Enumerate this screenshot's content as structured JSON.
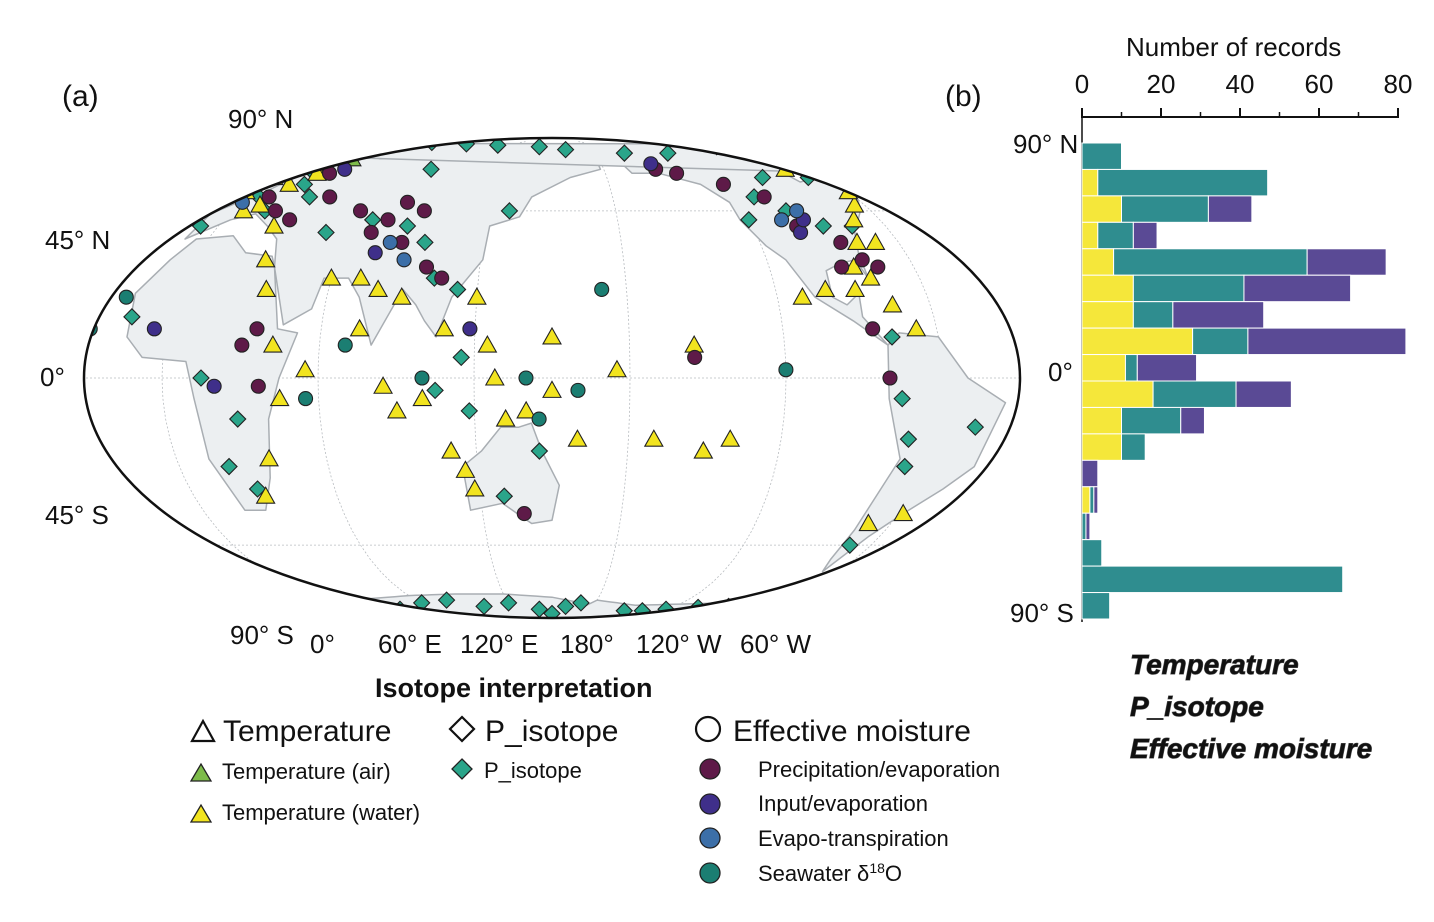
{
  "panels": {
    "a": "(a)",
    "b": "(b)"
  },
  "map": {
    "lat_labels": [
      "90° N",
      "45° N",
      "0°",
      "45° S",
      "90° S"
    ],
    "lon_labels": [
      "0°",
      "60° E",
      "120° E",
      "180°",
      "120° W",
      "60° W"
    ]
  },
  "legend": {
    "title": "Isotope interpretation",
    "groups": [
      {
        "label": "Temperature",
        "marker": "triangle-open",
        "items": [
          {
            "label": "Temperature (air)",
            "marker": "triangle",
            "color": "#7dbb4a"
          },
          {
            "label": "Temperature (water)",
            "marker": "triangle",
            "color": "#f2e41f"
          }
        ]
      },
      {
        "label": "P_isotope",
        "marker": "diamond-open",
        "items": [
          {
            "label": "P_isotope",
            "marker": "diamond",
            "color": "#2aa58a"
          }
        ]
      },
      {
        "label": "Effective moisture",
        "marker": "circle-open",
        "items": [
          {
            "label": "Precipitation/evaporation",
            "marker": "circle",
            "color": "#5e1a48"
          },
          {
            "label": "Input/evaporation",
            "marker": "circle",
            "color": "#3f2f8a"
          },
          {
            "label": "Evapo-transpiration",
            "marker": "circle",
            "color": "#3c6fa8"
          },
          {
            "label": "Seawater δ",
            "sup": "18",
            "suffix": "O",
            "marker": "circle",
            "color": "#1b7e72"
          }
        ]
      }
    ]
  },
  "colors": {
    "temperature": "#f5e73a",
    "p_isotope": "#2f8d8f",
    "effective_moisture": "#5a4a95",
    "land": "#eceff1",
    "coast": "#a9aeb3"
  },
  "chart_data": {
    "type": "bar",
    "orientation": "horizontal-stacked",
    "xlabel": "Number of records",
    "xlim": [
      0,
      80
    ],
    "xticks": [
      0,
      20,
      40,
      60,
      80
    ],
    "ylim": [
      -90,
      90
    ],
    "yticks": [
      "90° N",
      "0°",
      "90° S"
    ],
    "lat_bins": [
      [
        80,
        90
      ],
      [
        70,
        80
      ],
      [
        60,
        70
      ],
      [
        50,
        60
      ],
      [
        40,
        50
      ],
      [
        30,
        40
      ],
      [
        20,
        30
      ],
      [
        10,
        20
      ],
      [
        0,
        10
      ],
      [
        -10,
        0
      ],
      [
        -20,
        -10
      ],
      [
        -30,
        -20
      ],
      [
        -40,
        -30
      ],
      [
        -50,
        -40
      ],
      [
        -60,
        -50
      ],
      [
        -70,
        -60
      ],
      [
        -80,
        -70
      ],
      [
        -90,
        -80
      ]
    ],
    "series": [
      {
        "name": "Temperature",
        "values": [
          0,
          4,
          10,
          4,
          8,
          13,
          13,
          28,
          11,
          18,
          10,
          10,
          0,
          2,
          0,
          0,
          0,
          0
        ]
      },
      {
        "name": "P_isotope",
        "values": [
          10,
          43,
          22,
          9,
          49,
          28,
          10,
          14,
          3,
          21,
          15,
          6,
          0,
          1,
          1,
          5,
          66,
          7
        ]
      },
      {
        "name": "Effective moisture",
        "values": [
          0,
          0,
          11,
          6,
          20,
          27,
          23,
          40,
          15,
          14,
          6,
          0,
          4,
          1,
          1,
          0,
          0,
          0
        ]
      }
    ]
  },
  "map_points": [
    {
      "lon": -5,
      "lat": 52,
      "s": "tw"
    },
    {
      "lon": -2,
      "lat": 58,
      "s": "tw"
    },
    {
      "lon": 8,
      "lat": 64,
      "s": "tw"
    },
    {
      "lon": 14,
      "lat": 70,
      "s": "tw"
    },
    {
      "lon": 22,
      "lat": 68,
      "s": "ta"
    },
    {
      "lon": 18,
      "lat": 60,
      "s": "tw"
    },
    {
      "lon": 10,
      "lat": 47,
      "s": "tw"
    },
    {
      "lon": 25,
      "lat": 40,
      "s": "tw"
    },
    {
      "lon": 30,
      "lat": 30,
      "s": "tw"
    },
    {
      "lon": 35,
      "lat": 22,
      "s": "tw"
    },
    {
      "lon": 42,
      "lat": 8,
      "s": "tw"
    },
    {
      "lon": 45,
      "lat": -5,
      "s": "tw"
    },
    {
      "lon": 37,
      "lat": -20,
      "s": "tw"
    },
    {
      "lon": 30,
      "lat": -30,
      "s": "tw"
    },
    {
      "lon": 55,
      "lat": 2,
      "s": "tw"
    },
    {
      "lon": 75,
      "lat": 12,
      "s": "tw"
    },
    {
      "lon": 72,
      "lat": 25,
      "s": "tw"
    },
    {
      "lon": 85,
      "lat": -2,
      "s": "tw"
    },
    {
      "lon": 90,
      "lat": -8,
      "s": "tw"
    },
    {
      "lon": 110,
      "lat": -18,
      "s": "tw"
    },
    {
      "lon": 118,
      "lat": -28,
      "s": "tw"
    },
    {
      "lon": 115,
      "lat": -23,
      "s": "tw"
    },
    {
      "lon": 140,
      "lat": -8,
      "s": "tw"
    },
    {
      "lon": 150,
      "lat": -3,
      "s": "tw"
    },
    {
      "lon": 160,
      "lat": -15,
      "s": "tw"
    },
    {
      "lon": 175,
      "lat": 2,
      "s": "tw"
    },
    {
      "lon": -170,
      "lat": -15,
      "s": "tw"
    },
    {
      "lon": -150,
      "lat": -18,
      "s": "tw"
    },
    {
      "lon": -140,
      "lat": -15,
      "s": "tw"
    },
    {
      "lon": -155,
      "lat": 8,
      "s": "tw"
    },
    {
      "lon": -110,
      "lat": 20,
      "s": "tw"
    },
    {
      "lon": -100,
      "lat": 22,
      "s": "tw"
    },
    {
      "lon": -85,
      "lat": 28,
      "s": "tw"
    },
    {
      "lon": -80,
      "lat": 25,
      "s": "tw"
    },
    {
      "lon": -75,
      "lat": 18,
      "s": "tw"
    },
    {
      "lon": -68,
      "lat": 12,
      "s": "tw"
    },
    {
      "lon": -78,
      "lat": 35,
      "s": "tw"
    },
    {
      "lon": -72,
      "lat": 42,
      "s": "tw"
    },
    {
      "lon": -65,
      "lat": 47,
      "s": "tw"
    },
    {
      "lon": -60,
      "lat": 52,
      "s": "tw"
    },
    {
      "lon": -75,
      "lat": 62,
      "s": "tw"
    },
    {
      "lon": -70,
      "lat": 35,
      "s": "tw"
    },
    {
      "lon": -88,
      "lat": 22,
      "s": "tw"
    },
    {
      "lon": -70,
      "lat": -38,
      "s": "tw"
    },
    {
      "lon": -58,
      "lat": -35,
      "s": "tw"
    },
    {
      "lon": 120,
      "lat": 20,
      "s": "tw"
    },
    {
      "lon": 125,
      "lat": 8,
      "s": "tw"
    },
    {
      "lon": 128,
      "lat": 0,
      "s": "tw"
    },
    {
      "lon": 132,
      "lat": -10,
      "s": "tw"
    },
    {
      "lon": 100,
      "lat": -5,
      "s": "tw"
    },
    {
      "lon": 150,
      "lat": 10,
      "s": "tw"
    },
    {
      "lon": 108,
      "lat": 12,
      "s": "tw"
    },
    {
      "lon": 90,
      "lat": 20,
      "s": "tw"
    },
    {
      "lon": 80,
      "lat": 22,
      "s": "tw"
    },
    {
      "lon": 60,
      "lat": 25,
      "s": "tw"
    },
    {
      "lon": 12,
      "lat": 55,
      "s": "tw"
    },
    {
      "lon": -12,
      "lat": 64,
      "s": "tw"
    },
    {
      "lon": 5,
      "lat": 45,
      "s": "tw"
    },
    {
      "lon": 35,
      "lat": 85,
      "s": "pi"
    },
    {
      "lon": 75,
      "lat": 82,
      "s": "pi"
    },
    {
      "lon": 105,
      "lat": 80,
      "s": "pi"
    },
    {
      "lon": 140,
      "lat": 78,
      "s": "pi"
    },
    {
      "lon": 160,
      "lat": 75,
      "s": "pi"
    },
    {
      "lon": -160,
      "lat": 72,
      "s": "pi"
    },
    {
      "lon": -130,
      "lat": 72,
      "s": "pi"
    },
    {
      "lon": -80,
      "lat": 78,
      "s": "pi"
    },
    {
      "lon": -60,
      "lat": 78,
      "s": "pi"
    },
    {
      "lon": -50,
      "lat": 75,
      "s": "pi"
    },
    {
      "lon": -45,
      "lat": 70,
      "s": "pi"
    },
    {
      "lon": -40,
      "lat": 68,
      "s": "pi"
    },
    {
      "lon": -35,
      "lat": 65,
      "s": "pi"
    },
    {
      "lon": -30,
      "lat": 62,
      "s": "pi"
    },
    {
      "lon": -25,
      "lat": 70,
      "s": "pi"
    },
    {
      "lon": -55,
      "lat": 65,
      "s": "pi"
    },
    {
      "lon": -70,
      "lat": 58,
      "s": "pi"
    },
    {
      "lon": -95,
      "lat": 58,
      "s": "pi"
    },
    {
      "lon": -110,
      "lat": 50,
      "s": "pi"
    },
    {
      "lon": -100,
      "lat": 45,
      "s": "pi"
    },
    {
      "lon": -88,
      "lat": 40,
      "s": "pi"
    },
    {
      "lon": -120,
      "lat": 42,
      "s": "pi"
    },
    {
      "lon": -75,
      "lat": 40,
      "s": "pi"
    },
    {
      "lon": -78,
      "lat": 10,
      "s": "pi"
    },
    {
      "lon": -75,
      "lat": -5,
      "s": "pi"
    },
    {
      "lon": -70,
      "lat": -15,
      "s": "pi"
    },
    {
      "lon": -68,
      "lat": -22,
      "s": "pi"
    },
    {
      "lon": -45,
      "lat": -12,
      "s": "pi"
    },
    {
      "lon": -70,
      "lat": -45,
      "s": "pi"
    },
    {
      "lon": 10,
      "lat": 62,
      "s": "pi"
    },
    {
      "lon": 20,
      "lat": 55,
      "s": "pi"
    },
    {
      "lon": 30,
      "lat": 50,
      "s": "pi"
    },
    {
      "lon": 15,
      "lat": 45,
      "s": "pi"
    },
    {
      "lon": 5,
      "lat": 50,
      "s": "pi"
    },
    {
      "lon": -8,
      "lat": 40,
      "s": "pi"
    },
    {
      "lon": -15,
      "lat": 15,
      "s": "pi"
    },
    {
      "lon": 15,
      "lat": 0,
      "s": "pi"
    },
    {
      "lon": 28,
      "lat": -10,
      "s": "pi"
    },
    {
      "lon": 20,
      "lat": -22,
      "s": "pi"
    },
    {
      "lon": 28,
      "lat": -28,
      "s": "pi"
    },
    {
      "lon": 50,
      "lat": 38,
      "s": "pi"
    },
    {
      "lon": 68,
      "lat": 42,
      "s": "pi"
    },
    {
      "lon": 85,
      "lat": 40,
      "s": "pi"
    },
    {
      "lon": 95,
      "lat": 35,
      "s": "pi"
    },
    {
      "lon": 80,
      "lat": 62,
      "s": "pi"
    },
    {
      "lon": 130,
      "lat": 45,
      "s": "pi"
    },
    {
      "lon": 102,
      "lat": 25,
      "s": "pi"
    },
    {
      "lon": 112,
      "lat": 22,
      "s": "pi"
    },
    {
      "lon": 115,
      "lat": 5,
      "s": "pi"
    },
    {
      "lon": 105,
      "lat": -3,
      "s": "pi"
    },
    {
      "lon": 118,
      "lat": -8,
      "s": "pi"
    },
    {
      "lon": 145,
      "lat": -18,
      "s": "pi"
    },
    {
      "lon": 130,
      "lat": -30,
      "s": "pi"
    },
    {
      "lon": -20,
      "lat": -72,
      "s": "pi"
    },
    {
      "lon": -10,
      "lat": -74,
      "s": "pi"
    },
    {
      "lon": 0,
      "lat": -72,
      "s": "pi"
    },
    {
      "lon": 10,
      "lat": -75,
      "s": "pi"
    },
    {
      "lon": 30,
      "lat": -78,
      "s": "pi"
    },
    {
      "lon": 60,
      "lat": -72,
      "s": "pi"
    },
    {
      "lon": 80,
      "lat": -70,
      "s": "pi"
    },
    {
      "lon": 100,
      "lat": -75,
      "s": "pi"
    },
    {
      "lon": 120,
      "lat": -72,
      "s": "pi"
    },
    {
      "lon": 140,
      "lat": -78,
      "s": "pi"
    },
    {
      "lon": 160,
      "lat": -75,
      "s": "pi"
    },
    {
      "lon": 170,
      "lat": -72,
      "s": "pi"
    },
    {
      "lon": -120,
      "lat": -78,
      "s": "pi"
    },
    {
      "lon": -100,
      "lat": -76,
      "s": "pi"
    },
    {
      "lon": -80,
      "lat": -75,
      "s": "pi"
    },
    {
      "lon": -65,
      "lat": -68,
      "s": "pi"
    },
    {
      "lon": 150,
      "lat": -85,
      "s": "pi"
    },
    {
      "lon": -150,
      "lat": -80,
      "s": "pi"
    },
    {
      "lon": -135,
      "lat": -80,
      "s": "pi"
    },
    {
      "lon": -5,
      "lat": -72,
      "s": "pi"
    },
    {
      "lon": 10,
      "lat": 50,
      "s": "pe"
    },
    {
      "lon": 20,
      "lat": 45,
      "s": "pe"
    },
    {
      "lon": 30,
      "lat": 42,
      "s": "pe"
    },
    {
      "lon": 40,
      "lat": 50,
      "s": "pe"
    },
    {
      "lon": 60,
      "lat": 45,
      "s": "pe"
    },
    {
      "lon": 75,
      "lat": 42,
      "s": "pe"
    },
    {
      "lon": 80,
      "lat": 48,
      "s": "pe"
    },
    {
      "lon": 90,
      "lat": 45,
      "s": "pe"
    },
    {
      "lon": 85,
      "lat": 35,
      "s": "pe"
    },
    {
      "lon": 70,
      "lat": 38,
      "s": "pe"
    },
    {
      "lon": 98,
      "lat": 28,
      "s": "pe"
    },
    {
      "lon": 105,
      "lat": 25,
      "s": "pe"
    },
    {
      "lon": 30,
      "lat": 8,
      "s": "pe"
    },
    {
      "lon": 37,
      "lat": -2,
      "s": "pe"
    },
    {
      "lon": 35,
      "lat": 12,
      "s": "pe"
    },
    {
      "lon": -150,
      "lat": 62,
      "s": "pe"
    },
    {
      "lon": -140,
      "lat": 60,
      "s": "pe"
    },
    {
      "lon": -120,
      "lat": 55,
      "s": "pe"
    },
    {
      "lon": -105,
      "lat": 50,
      "s": "pe"
    },
    {
      "lon": -100,
      "lat": 40,
      "s": "pe"
    },
    {
      "lon": -85,
      "lat": 35,
      "s": "pe"
    },
    {
      "lon": -90,
      "lat": 28,
      "s": "pe"
    },
    {
      "lon": -80,
      "lat": 30,
      "s": "pe"
    },
    {
      "lon": -75,
      "lat": 28,
      "s": "pe"
    },
    {
      "lon": -85,
      "lat": 12,
      "s": "pe"
    },
    {
      "lon": -80,
      "lat": 0,
      "s": "pe"
    },
    {
      "lon": 138,
      "lat": -35,
      "s": "pe"
    },
    {
      "lon": -155,
      "lat": 5,
      "s": "pe"
    },
    {
      "lon": 25,
      "lat": 60,
      "s": "pe"
    },
    {
      "lon": 30,
      "lat": 62,
      "s": "ie"
    },
    {
      "lon": 20,
      "lat": -2,
      "s": "ie"
    },
    {
      "lon": -5,
      "lat": 12,
      "s": "ie"
    },
    {
      "lon": 75,
      "lat": 32,
      "s": "ie"
    },
    {
      "lon": 118,
      "lat": 12,
      "s": "ie"
    },
    {
      "lon": -100,
      "lat": 38,
      "s": "ie"
    },
    {
      "lon": -95,
      "lat": 42,
      "s": "ie"
    },
    {
      "lon": -150,
      "lat": 65,
      "s": "ie"
    },
    {
      "lon": 0,
      "lat": 48,
      "s": "et"
    },
    {
      "lon": -105,
      "lat": 42,
      "s": "et"
    },
    {
      "lon": -95,
      "lat": 45,
      "s": "et"
    },
    {
      "lon": 80,
      "lat": 35,
      "s": "et"
    },
    {
      "lon": 88,
      "lat": 30,
      "s": "et"
    },
    {
      "lon": -20,
      "lat": 20,
      "s": "sw"
    },
    {
      "lon": 140,
      "lat": 0,
      "s": "sw"
    },
    {
      "lon": 145,
      "lat": -10,
      "s": "sw"
    },
    {
      "lon": 100,
      "lat": 0,
      "s": "sw"
    },
    {
      "lon": 160,
      "lat": -3,
      "s": "sw"
    },
    {
      "lon": -120,
      "lat": 2,
      "s": "sw"
    },
    {
      "lon": -30,
      "lat": 12,
      "s": "sw"
    },
    {
      "lon": 70,
      "lat": 8,
      "s": "sw"
    },
    {
      "lon": 55,
      "lat": -5,
      "s": "sw"
    },
    {
      "lon": 170,
      "lat": 22,
      "s": "sw"
    }
  ]
}
